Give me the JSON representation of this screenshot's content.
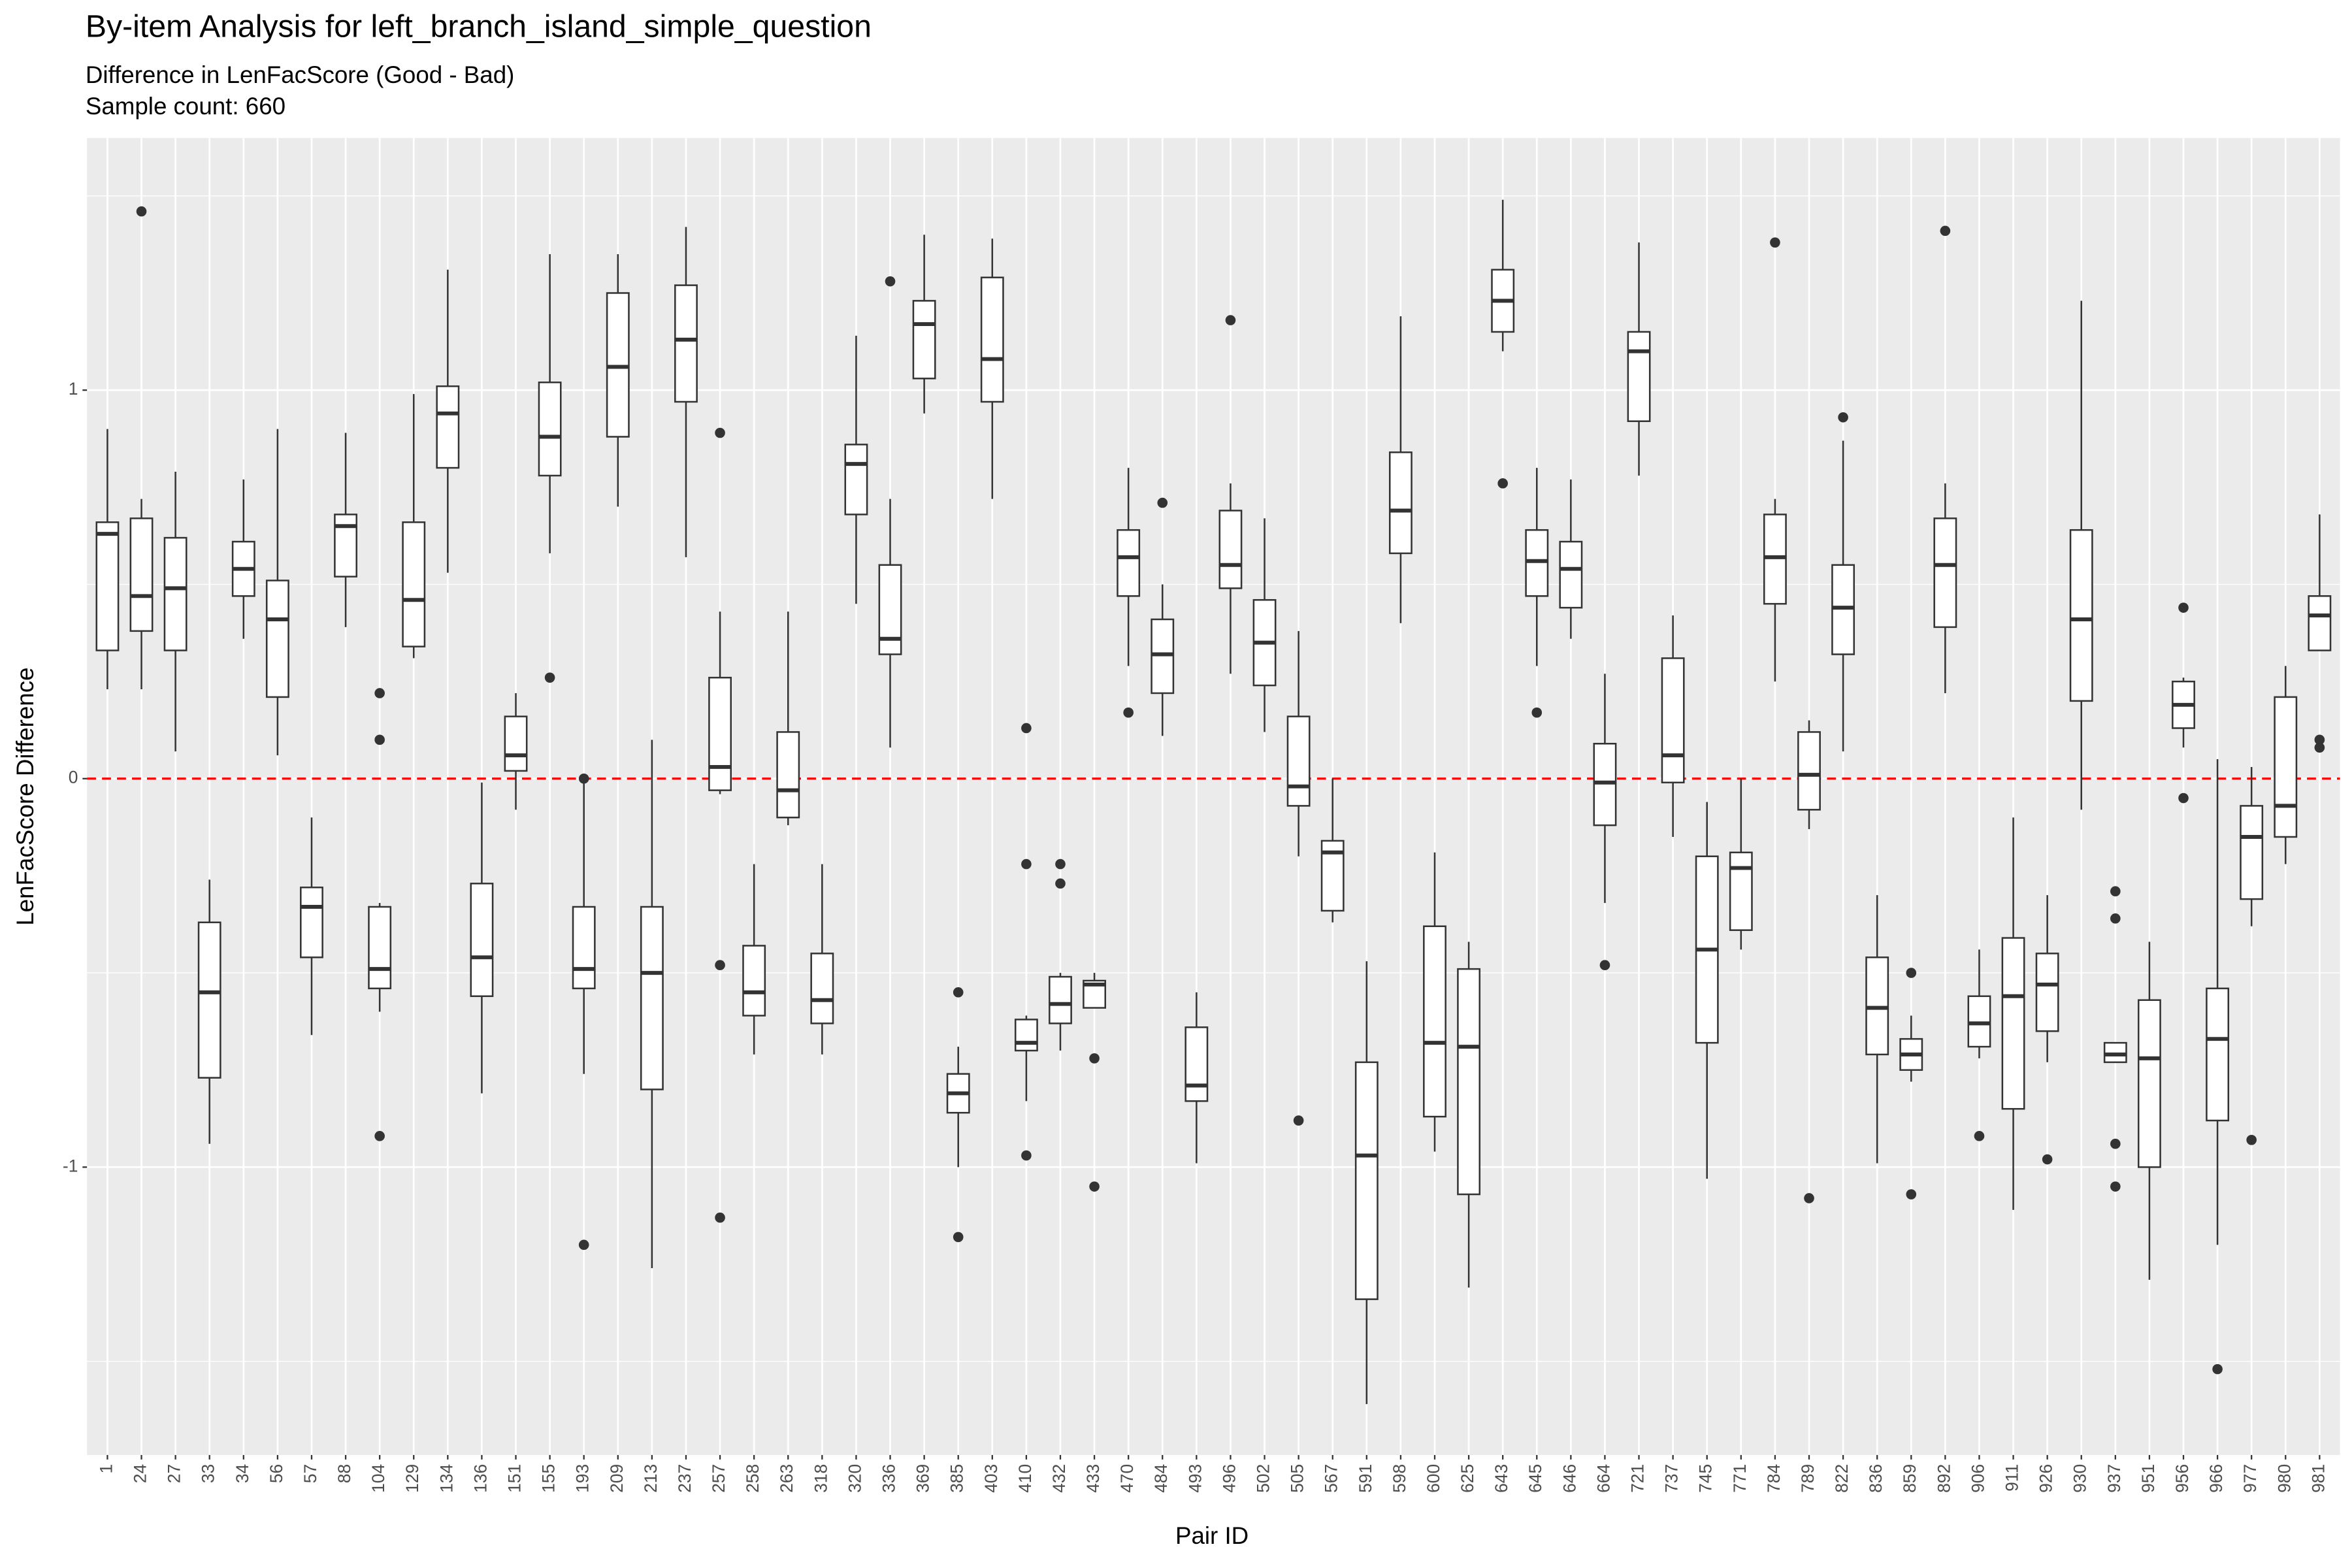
{
  "chart_data": {
    "type": "boxplot",
    "title": "By-item Analysis for left_branch_island_simple_question",
    "subtitle": "Difference in LenFacScore (Good - Bad)",
    "caption_line": "Sample count: 660",
    "x_label": "Pair ID",
    "y_label": "LenFacScore Difference",
    "ylim": [
      -1.741,
      1.649
    ],
    "yticks": [
      -1,
      0,
      1
    ],
    "grid": true,
    "box_color": "#333333",
    "reference_line": {
      "y": 0,
      "color": "#ff0000"
    },
    "categories": [
      "1",
      "24",
      "27",
      "33",
      "34",
      "56",
      "57",
      "88",
      "104",
      "129",
      "134",
      "136",
      "151",
      "155",
      "193",
      "209",
      "213",
      "237",
      "257",
      "258",
      "263",
      "318",
      "320",
      "336",
      "369",
      "385",
      "403",
      "410",
      "432",
      "433",
      "470",
      "484",
      "493",
      "496",
      "502",
      "505",
      "567",
      "591",
      "598",
      "600",
      "625",
      "643",
      "645",
      "646",
      "664",
      "721",
      "737",
      "745",
      "771",
      "784",
      "789",
      "822",
      "836",
      "859",
      "892",
      "906",
      "911",
      "926",
      "930",
      "937",
      "951",
      "956",
      "966",
      "977",
      "980",
      "981"
    ],
    "boxes": [
      {
        "low": 0.23,
        "q1": 0.33,
        "median": 0.63,
        "q3": 0.66,
        "high": 0.9
      },
      {
        "low": 0.23,
        "q1": 0.38,
        "median": 0.47,
        "q3": 0.67,
        "high": 0.72,
        "outliers": [
          1.46
        ]
      },
      {
        "low": 0.07,
        "q1": 0.33,
        "median": 0.49,
        "q3": 0.62,
        "high": 0.79
      },
      {
        "low": -0.94,
        "q1": -0.77,
        "median": -0.55,
        "q3": -0.37,
        "high": -0.26
      },
      {
        "low": 0.36,
        "q1": 0.47,
        "median": 0.54,
        "q3": 0.61,
        "high": 0.77
      },
      {
        "low": 0.06,
        "q1": 0.21,
        "median": 0.41,
        "q3": 0.51,
        "high": 0.9
      },
      {
        "low": -0.66,
        "q1": -0.46,
        "median": -0.33,
        "q3": -0.28,
        "high": -0.1
      },
      {
        "low": 0.39,
        "q1": 0.52,
        "median": 0.65,
        "q3": 0.68,
        "high": 0.89
      },
      {
        "low": -0.6,
        "q1": -0.54,
        "median": -0.49,
        "q3": -0.33,
        "high": -0.32,
        "outliers": [
          0.22,
          0.1,
          -0.92
        ]
      },
      {
        "low": 0.31,
        "q1": 0.34,
        "median": 0.46,
        "q3": 0.66,
        "high": 0.99
      },
      {
        "low": 0.53,
        "q1": 0.8,
        "median": 0.94,
        "q3": 1.01,
        "high": 1.31
      },
      {
        "low": -0.81,
        "q1": -0.56,
        "median": -0.46,
        "q3": -0.27,
        "high": -0.01
      },
      {
        "low": -0.08,
        "q1": 0.02,
        "median": 0.06,
        "q3": 0.16,
        "high": 0.22
      },
      {
        "low": 0.58,
        "q1": 0.78,
        "median": 0.88,
        "q3": 1.02,
        "high": 1.35,
        "outliers": [
          0.26
        ]
      },
      {
        "low": -0.76,
        "q1": -0.54,
        "median": -0.49,
        "q3": -0.33,
        "high": -0.01,
        "outliers": [
          0.0,
          -1.2
        ]
      },
      {
        "low": 0.7,
        "q1": 0.88,
        "median": 1.06,
        "q3": 1.25,
        "high": 1.35
      },
      {
        "low": -1.26,
        "q1": -0.8,
        "median": -0.5,
        "q3": -0.33,
        "high": 0.1
      },
      {
        "low": 0.57,
        "q1": 0.97,
        "median": 1.13,
        "q3": 1.27,
        "high": 1.42
      },
      {
        "low": -0.04,
        "q1": -0.03,
        "median": 0.03,
        "q3": 0.26,
        "high": 0.43,
        "outliers": [
          0.89,
          -0.48,
          -1.13
        ]
      },
      {
        "low": -0.71,
        "q1": -0.61,
        "median": -0.55,
        "q3": -0.43,
        "high": -0.22
      },
      {
        "low": -0.12,
        "q1": -0.1,
        "median": -0.03,
        "q3": 0.12,
        "high": 0.43
      },
      {
        "low": -0.71,
        "q1": -0.63,
        "median": -0.57,
        "q3": -0.45,
        "high": -0.22
      },
      {
        "low": 0.45,
        "q1": 0.68,
        "median": 0.81,
        "q3": 0.86,
        "high": 1.14
      },
      {
        "low": 0.08,
        "q1": 0.32,
        "median": 0.36,
        "q3": 0.55,
        "high": 0.72,
        "outliers": [
          1.28
        ]
      },
      {
        "low": 0.94,
        "q1": 1.03,
        "median": 1.17,
        "q3": 1.23,
        "high": 1.4
      },
      {
        "low": -1.0,
        "q1": -0.86,
        "median": -0.81,
        "q3": -0.76,
        "high": -0.69,
        "outliers": [
          -0.55,
          -1.18
        ]
      },
      {
        "low": 0.72,
        "q1": 0.97,
        "median": 1.08,
        "q3": 1.29,
        "high": 1.39
      },
      {
        "low": -0.83,
        "q1": -0.7,
        "median": -0.68,
        "q3": -0.62,
        "high": -0.61,
        "outliers": [
          0.13,
          -0.22,
          -0.97
        ]
      },
      {
        "low": -0.7,
        "q1": -0.63,
        "median": -0.58,
        "q3": -0.51,
        "high": -0.5,
        "outliers": [
          -0.22,
          -0.27
        ]
      },
      {
        "low": -0.59,
        "q1": -0.59,
        "median": -0.53,
        "q3": -0.52,
        "high": -0.5,
        "outliers": [
          -0.72,
          -1.05
        ]
      },
      {
        "low": 0.29,
        "q1": 0.47,
        "median": 0.57,
        "q3": 0.64,
        "high": 0.8,
        "outliers": [
          0.17
        ]
      },
      {
        "low": 0.11,
        "q1": 0.22,
        "median": 0.32,
        "q3": 0.41,
        "high": 0.5,
        "outliers": [
          0.71
        ]
      },
      {
        "low": -0.99,
        "q1": -0.83,
        "median": -0.79,
        "q3": -0.64,
        "high": -0.55
      },
      {
        "low": 0.27,
        "q1": 0.49,
        "median": 0.55,
        "q3": 0.69,
        "high": 0.76,
        "outliers": [
          1.18
        ]
      },
      {
        "low": 0.12,
        "q1": 0.24,
        "median": 0.35,
        "q3": 0.46,
        "high": 0.67
      },
      {
        "low": -0.2,
        "q1": -0.07,
        "median": -0.02,
        "q3": 0.16,
        "high": 0.38,
        "outliers": [
          -0.88
        ]
      },
      {
        "low": -0.37,
        "q1": -0.34,
        "median": -0.19,
        "q3": -0.16,
        "high": 0.0
      },
      {
        "low": -1.61,
        "q1": -1.34,
        "median": -0.97,
        "q3": -0.73,
        "high": -0.47
      },
      {
        "low": 0.4,
        "q1": 0.58,
        "median": 0.69,
        "q3": 0.84,
        "high": 1.19
      },
      {
        "low": -0.96,
        "q1": -0.87,
        "median": -0.68,
        "q3": -0.38,
        "high": -0.19
      },
      {
        "low": -1.31,
        "q1": -1.07,
        "median": -0.69,
        "q3": -0.49,
        "high": -0.42
      },
      {
        "low": 1.1,
        "q1": 1.15,
        "median": 1.23,
        "q3": 1.31,
        "high": 1.49,
        "outliers": [
          0.76
        ]
      },
      {
        "low": 0.29,
        "q1": 0.47,
        "median": 0.56,
        "q3": 0.64,
        "high": 0.8,
        "outliers": [
          0.17
        ]
      },
      {
        "low": 0.36,
        "q1": 0.44,
        "median": 0.54,
        "q3": 0.61,
        "high": 0.77
      },
      {
        "low": -0.32,
        "q1": -0.12,
        "median": -0.01,
        "q3": 0.09,
        "high": 0.27,
        "outliers": [
          -0.48
        ]
      },
      {
        "low": 0.78,
        "q1": 0.92,
        "median": 1.1,
        "q3": 1.15,
        "high": 1.38
      },
      {
        "low": -0.15,
        "q1": -0.01,
        "median": 0.06,
        "q3": 0.31,
        "high": 0.42
      },
      {
        "low": -1.03,
        "q1": -0.68,
        "median": -0.44,
        "q3": -0.2,
        "high": -0.06
      },
      {
        "low": -0.44,
        "q1": -0.39,
        "median": -0.23,
        "q3": -0.19,
        "high": 0.0
      },
      {
        "low": 0.25,
        "q1": 0.45,
        "median": 0.57,
        "q3": 0.68,
        "high": 0.72,
        "outliers": [
          1.38
        ]
      },
      {
        "low": -0.13,
        "q1": -0.08,
        "median": 0.01,
        "q3": 0.12,
        "high": 0.15,
        "outliers": [
          -1.08
        ]
      },
      {
        "low": 0.07,
        "q1": 0.32,
        "median": 0.44,
        "q3": 0.55,
        "high": 0.87,
        "outliers": [
          0.93
        ]
      },
      {
        "low": -0.99,
        "q1": -0.71,
        "median": -0.59,
        "q3": -0.46,
        "high": -0.3
      },
      {
        "low": -0.78,
        "q1": -0.75,
        "median": -0.71,
        "q3": -0.67,
        "high": -0.61,
        "outliers": [
          -0.5,
          -1.07
        ]
      },
      {
        "low": 0.22,
        "q1": 0.39,
        "median": 0.55,
        "q3": 0.67,
        "high": 0.76,
        "outliers": [
          1.41
        ]
      },
      {
        "low": -0.72,
        "q1": -0.69,
        "median": -0.63,
        "q3": -0.56,
        "high": -0.44,
        "outliers": [
          -0.92
        ]
      },
      {
        "low": -1.11,
        "q1": -0.85,
        "median": -0.56,
        "q3": -0.41,
        "high": -0.1
      },
      {
        "low": -0.73,
        "q1": -0.65,
        "median": -0.53,
        "q3": -0.45,
        "high": -0.3,
        "outliers": [
          -0.98
        ]
      },
      {
        "low": -0.08,
        "q1": 0.2,
        "median": 0.41,
        "q3": 0.64,
        "high": 1.23
      },
      {
        "low": -0.73,
        "q1": -0.73,
        "median": -0.71,
        "q3": -0.68,
        "high": -0.68,
        "outliers": [
          -0.29,
          -0.36,
          -0.94,
          -1.05
        ]
      },
      {
        "low": -1.29,
        "q1": -1.0,
        "median": -0.72,
        "q3": -0.57,
        "high": -0.42
      },
      {
        "low": 0.08,
        "q1": 0.13,
        "median": 0.19,
        "q3": 0.25,
        "high": 0.26,
        "outliers": [
          0.44,
          -0.05
        ]
      },
      {
        "low": -1.2,
        "q1": -0.88,
        "median": -0.67,
        "q3": -0.54,
        "high": 0.05,
        "outliers": [
          -1.52
        ]
      },
      {
        "low": -0.38,
        "q1": -0.31,
        "median": -0.15,
        "q3": -0.07,
        "high": 0.03,
        "outliers": [
          -0.93
        ]
      },
      {
        "low": -0.22,
        "q1": -0.15,
        "median": -0.07,
        "q3": 0.21,
        "high": 0.29
      },
      {
        "low": 0.33,
        "q1": 0.33,
        "median": 0.42,
        "q3": 0.47,
        "high": 0.68,
        "outliers": [
          0.1,
          0.08
        ]
      }
    ]
  }
}
